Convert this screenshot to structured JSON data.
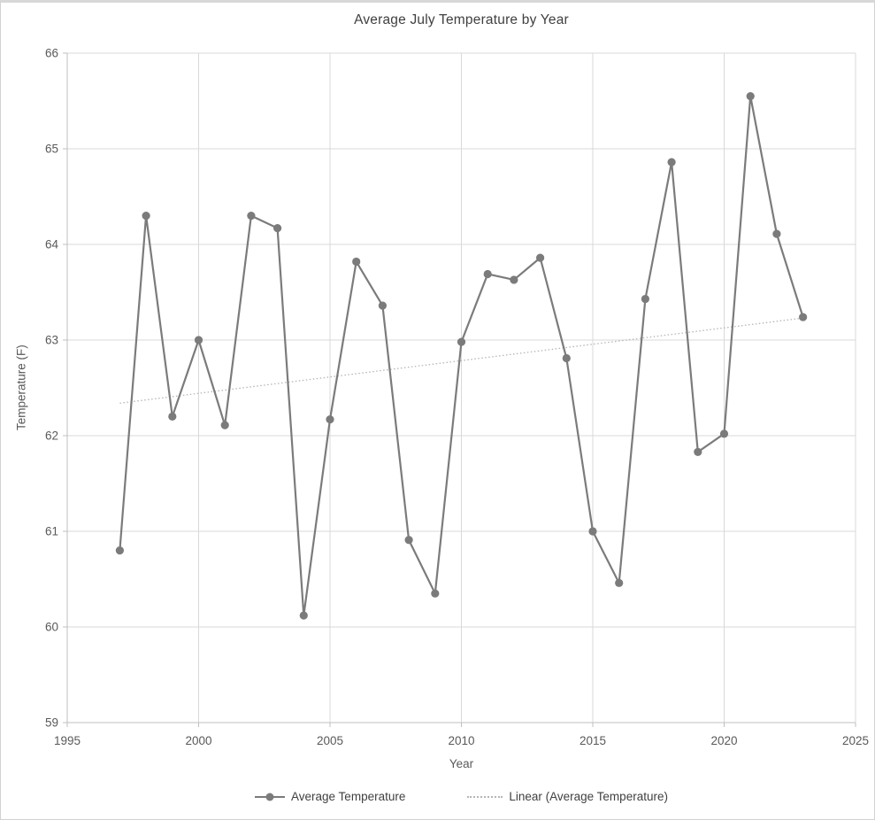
{
  "chart_data": {
    "type": "line",
    "title": "Average July Temperature by Year",
    "xlabel": "Year",
    "ylabel": "Temperature (F)",
    "x": [
      1997,
      1998,
      1999,
      2000,
      2001,
      2002,
      2003,
      2004,
      2005,
      2006,
      2007,
      2008,
      2009,
      2010,
      2011,
      2012,
      2013,
      2014,
      2015,
      2016,
      2017,
      2018,
      2019,
      2020,
      2021,
      2022,
      2023
    ],
    "series": [
      {
        "name": "Average Temperature",
        "values": [
          60.8,
          64.3,
          62.2,
          63.0,
          62.11,
          64.3,
          64.17,
          60.12,
          62.17,
          63.82,
          63.36,
          60.91,
          60.35,
          62.98,
          63.69,
          63.63,
          63.86,
          62.81,
          61.0,
          60.46,
          63.43,
          64.86,
          61.83,
          62.02,
          65.55,
          64.11,
          63.24
        ]
      }
    ],
    "trendline": {
      "name": "Linear (Average Temperature)",
      "style": "dotted",
      "x1": 1997,
      "y1": 62.34,
      "x2": 2023,
      "y2": 63.23
    },
    "xlim": [
      1995,
      2025
    ],
    "ylim": [
      59,
      66
    ],
    "x_ticks": [
      1995,
      2000,
      2005,
      2010,
      2015,
      2020,
      2025
    ],
    "y_ticks": [
      59,
      60,
      61,
      62,
      63,
      64,
      65,
      66
    ],
    "grid": true,
    "legend": [
      "Average Temperature",
      "Linear (Average Temperature)"
    ],
    "legend_position": "bottom",
    "colors": {
      "series": "#7b7b7b",
      "trend": "#b5b5b5",
      "gridline": "#d9d9d9",
      "axis": "#bfbfbf",
      "title_text": "#404040",
      "tick_text": "#595959"
    }
  }
}
